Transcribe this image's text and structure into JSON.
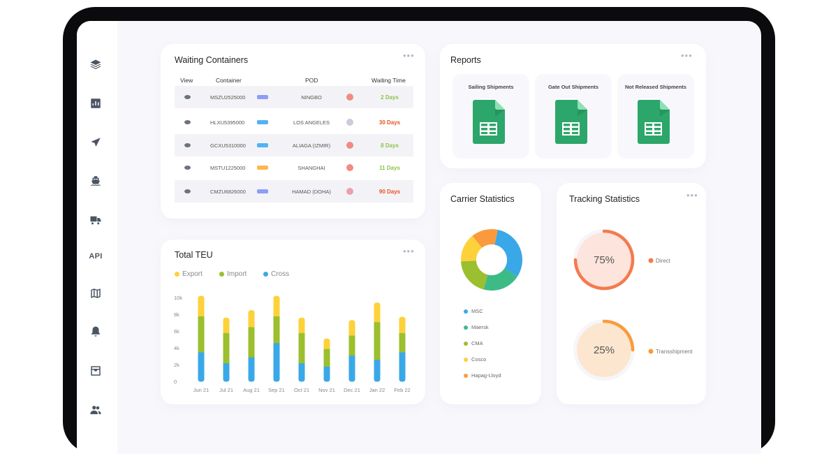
{
  "sidebar": {
    "api_label": "API"
  },
  "waiting": {
    "title": "Waiting Containers",
    "headers": {
      "view": "View",
      "container": "Container",
      "pod": "POD",
      "waiting": "Waiting Time"
    },
    "rows": [
      {
        "container": "MSZU2525000",
        "pod": "NINGBO",
        "days": "2 Days",
        "days_color": "#8bc34a",
        "tag_color": "#8e9ef5",
        "flag_color": "#f28b82"
      },
      {
        "container": "HLXU5395000",
        "pod": "LOS ANGELES",
        "days": "30 Days",
        "days_color": "#e8531e",
        "tag_color": "#4fb3f6",
        "flag_color": "#c9ccd9"
      },
      {
        "container": "GCXU5310000",
        "pod": "ALIAGA (IZMIR)",
        "days": "8 Days",
        "days_color": "#8bc34a",
        "tag_color": "#4fb3f6",
        "flag_color": "#f28b82"
      },
      {
        "container": "MSTU1225000",
        "pod": "SHANGHAI",
        "days": "11 Days",
        "days_color": "#8bc34a",
        "tag_color": "#ffb74d",
        "flag_color": "#f28b82"
      },
      {
        "container": "CMZU6826000",
        "pod": "HAMAD (DOHA)",
        "days": "90 Days",
        "days_color": "#e8531e",
        "tag_color": "#8e9ef5",
        "flag_color": "#e9a0b0"
      }
    ]
  },
  "reports": {
    "title": "Reports",
    "items": [
      {
        "label": "Sailing Shipments"
      },
      {
        "label": "Gate Out Shipments"
      },
      {
        "label": "Not Released Shipments"
      }
    ]
  },
  "teu": {
    "title": "Total TEU",
    "legend": [
      {
        "name": "Export",
        "color": "#fdd13a"
      },
      {
        "name": "Import",
        "color": "#9bbf2e"
      },
      {
        "name": "Cross",
        "color": "#3aa8e8"
      }
    ]
  },
  "carrier": {
    "title": "Carrier Statistics",
    "legend": [
      {
        "name": "MSC",
        "color": "#3aa8e8"
      },
      {
        "name": "Maersk",
        "color": "#3dbb87"
      },
      {
        "name": "CMA",
        "color": "#9bbf2e"
      },
      {
        "name": "Cosco",
        "color": "#fdd13a"
      },
      {
        "name": "Hapag-Lloyd",
        "color": "#fb9a3c"
      }
    ]
  },
  "tracking": {
    "title": "Tracking Statistics",
    "items": [
      {
        "label": "Direct",
        "value_text": "75%",
        "value": 0.75,
        "color": "#f57a4d",
        "fill": "#fde4dc"
      },
      {
        "label": "Transshipment",
        "value_text": "25%",
        "value": 0.25,
        "color": "#fb9a3c",
        "fill": "#fde6cf"
      }
    ]
  },
  "chart_data": [
    {
      "type": "bar",
      "title": "Total TEU",
      "stacked": true,
      "categories": [
        "Jun 21",
        "Jul 21",
        "Aug 21",
        "Sep 21",
        "Oct 21",
        "Nov 21",
        "Dec 21",
        "Jan 22",
        "Feb 22"
      ],
      "series": [
        {
          "name": "Cross",
          "color": "#3aa8e8",
          "values": [
            3500,
            2200,
            2900,
            4600,
            2200,
            1800,
            3100,
            2600,
            3500
          ]
        },
        {
          "name": "Import",
          "color": "#9bbf2e",
          "values": [
            4300,
            3600,
            3600,
            3200,
            3600,
            2100,
            2400,
            4500,
            2300
          ]
        },
        {
          "name": "Export",
          "color": "#fdd13a",
          "values": [
            2400,
            1800,
            2000,
            2400,
            1800,
            1200,
            1800,
            2300,
            1900
          ]
        }
      ],
      "ylim": [
        0,
        10000
      ],
      "yticks": [
        "10k",
        "8k",
        "6k",
        "4k",
        "2k",
        "0"
      ],
      "legend": "top-left",
      "grid": false
    },
    {
      "type": "pie",
      "title": "Carrier Statistics",
      "donut": true,
      "labels": [
        "MSC",
        "Maersk",
        "CMA",
        "Cosco",
        "Hapag-Lloyd"
      ],
      "values": [
        31,
        20,
        20,
        15,
        14
      ],
      "colors": [
        "#3aa8e8",
        "#3dbb87",
        "#9bbf2e",
        "#fdd13a",
        "#fb9a3c"
      ],
      "legend": "bottom"
    }
  ]
}
